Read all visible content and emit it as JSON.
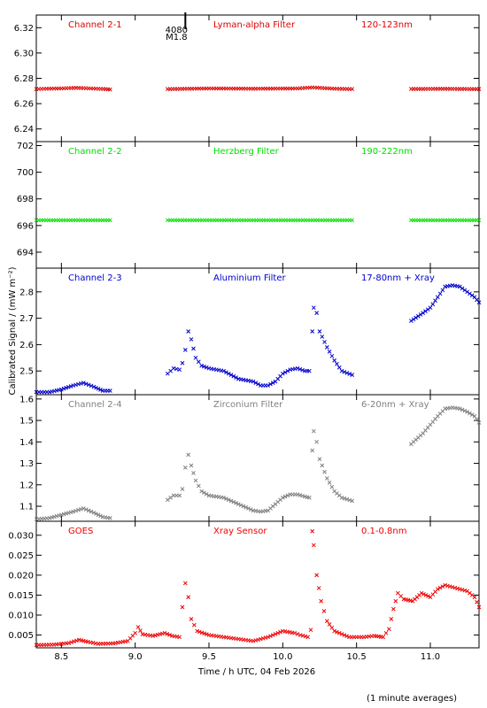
{
  "y_axis_label": "Calibrated Signal / (mW m⁻²)",
  "x_axis_label": "Time / h UTC, 04 Feb 2026",
  "footnote": "(1 minute averages)",
  "marker": {
    "label_line1": "4080",
    "label_line2": "M1.8",
    "time": 9.34
  },
  "x_axis": {
    "min": 8.33,
    "max": 11.33,
    "ticks": [
      8.5,
      9.0,
      9.5,
      10.0,
      10.5,
      11.0
    ],
    "tick_labels": [
      "8.5",
      "9.0",
      "9.5",
      "10.0",
      "10.5",
      "11.0"
    ]
  },
  "chart_data": [
    {
      "type": "scatter",
      "color": "#dd0000",
      "header": [
        "Channel 2-1",
        "Lyman-alpha Filter",
        "120-123nm"
      ],
      "ylim": [
        6.23,
        6.33
      ],
      "yticks": [
        6.24,
        6.26,
        6.28,
        6.3,
        6.32
      ],
      "ytick_labels": [
        "6.24",
        "6.26",
        "6.28",
        "6.30",
        "6.32"
      ],
      "points": [
        [
          8.33,
          6.2715
        ],
        [
          8.4,
          6.2718
        ],
        [
          8.5,
          6.272
        ],
        [
          8.6,
          6.2725
        ],
        [
          8.7,
          6.272
        ],
        [
          8.8,
          6.2715
        ],
        [
          8.83,
          6.2712
        ],
        [
          null,
          null
        ],
        [
          9.22,
          6.2715
        ],
        [
          9.5,
          6.272
        ],
        [
          9.8,
          6.2718
        ],
        [
          10.1,
          6.272
        ],
        [
          10.2,
          6.2728
        ],
        [
          10.35,
          6.2718
        ],
        [
          10.47,
          6.2715
        ],
        [
          null,
          null
        ],
        [
          10.87,
          6.2716
        ],
        [
          11.1,
          6.2717
        ],
        [
          11.33,
          6.2715
        ]
      ]
    },
    {
      "type": "scatter",
      "color": "#00dd00",
      "header": [
        "Channel 2-2",
        "Herzberg Filter",
        "190-222nm"
      ],
      "ylim": [
        692.8,
        702.3
      ],
      "yticks": [
        694,
        696,
        698,
        700,
        702
      ],
      "ytick_labels": [
        "694",
        "696",
        "698",
        "700",
        "702"
      ],
      "points": [
        [
          8.33,
          696.4
        ],
        [
          8.83,
          696.4
        ],
        [
          null,
          null
        ],
        [
          9.22,
          696.4
        ],
        [
          10.47,
          696.4
        ],
        [
          null,
          null
        ],
        [
          10.87,
          696.4
        ],
        [
          11.33,
          696.4
        ]
      ]
    },
    {
      "type": "scatter",
      "color": "#0000cc",
      "header": [
        "Channel 2-3",
        "Aluminium Filter",
        "17-80nm + Xray"
      ],
      "ylim": [
        2.41,
        2.89
      ],
      "yticks": [
        2.5,
        2.6,
        2.7,
        2.8
      ],
      "ytick_labels": [
        "2.5",
        "2.6",
        "2.7",
        "2.8"
      ],
      "points": [
        [
          8.33,
          2.42
        ],
        [
          8.42,
          2.42
        ],
        [
          8.5,
          2.43
        ],
        [
          8.58,
          2.445
        ],
        [
          8.65,
          2.455
        ],
        [
          8.72,
          2.44
        ],
        [
          8.78,
          2.425
        ],
        [
          8.83,
          2.425
        ],
        [
          null,
          null
        ],
        [
          9.22,
          2.49
        ],
        [
          9.26,
          2.51
        ],
        [
          9.3,
          2.505
        ],
        [
          9.32,
          2.53
        ],
        [
          9.34,
          2.58
        ],
        [
          9.36,
          2.65
        ],
        [
          9.38,
          2.62
        ],
        [
          9.41,
          2.55
        ],
        [
          9.45,
          2.52
        ],
        [
          9.5,
          2.51
        ],
        [
          9.6,
          2.5
        ],
        [
          9.7,
          2.47
        ],
        [
          9.8,
          2.46
        ],
        [
          9.85,
          2.445
        ],
        [
          9.9,
          2.445
        ],
        [
          9.95,
          2.46
        ],
        [
          10.0,
          2.49
        ],
        [
          10.05,
          2.505
        ],
        [
          10.1,
          2.51
        ],
        [
          10.15,
          2.5
        ],
        [
          10.18,
          2.5
        ],
        [
          10.2,
          2.65
        ],
        [
          10.21,
          2.74
        ],
        [
          10.23,
          2.72
        ],
        [
          10.25,
          2.65
        ],
        [
          10.3,
          2.59
        ],
        [
          10.35,
          2.54
        ],
        [
          10.4,
          2.5
        ],
        [
          10.47,
          2.485
        ],
        [
          null,
          null
        ],
        [
          10.87,
          2.69
        ],
        [
          10.95,
          2.72
        ],
        [
          11.0,
          2.74
        ],
        [
          11.05,
          2.78
        ],
        [
          11.1,
          2.82
        ],
        [
          11.15,
          2.825
        ],
        [
          11.2,
          2.82
        ],
        [
          11.25,
          2.8
        ],
        [
          11.3,
          2.78
        ],
        [
          11.33,
          2.76
        ]
      ]
    },
    {
      "type": "scatter",
      "color": "#808080",
      "header": [
        "Channel 2-4",
        "Zirconium Filter",
        "6-20nm + Xray"
      ],
      "ylim": [
        1.03,
        1.62
      ],
      "yticks": [
        1.1,
        1.2,
        1.3,
        1.4,
        1.5,
        1.6
      ],
      "ytick_labels": [
        "1.1",
        "1.2",
        "1.3",
        "1.4",
        "1.5",
        "1.6"
      ],
      "points": [
        [
          8.33,
          1.04
        ],
        [
          8.42,
          1.045
        ],
        [
          8.5,
          1.06
        ],
        [
          8.58,
          1.075
        ],
        [
          8.65,
          1.09
        ],
        [
          8.72,
          1.07
        ],
        [
          8.78,
          1.05
        ],
        [
          8.83,
          1.045
        ],
        [
          null,
          null
        ],
        [
          9.22,
          1.13
        ],
        [
          9.26,
          1.15
        ],
        [
          9.3,
          1.15
        ],
        [
          9.32,
          1.18
        ],
        [
          9.34,
          1.28
        ],
        [
          9.36,
          1.34
        ],
        [
          9.38,
          1.29
        ],
        [
          9.41,
          1.22
        ],
        [
          9.45,
          1.17
        ],
        [
          9.5,
          1.15
        ],
        [
          9.6,
          1.14
        ],
        [
          9.7,
          1.11
        ],
        [
          9.8,
          1.08
        ],
        [
          9.85,
          1.075
        ],
        [
          9.9,
          1.08
        ],
        [
          9.95,
          1.11
        ],
        [
          10.0,
          1.14
        ],
        [
          10.05,
          1.155
        ],
        [
          10.1,
          1.155
        ],
        [
          10.15,
          1.145
        ],
        [
          10.18,
          1.14
        ],
        [
          10.2,
          1.36
        ],
        [
          10.21,
          1.45
        ],
        [
          10.23,
          1.4
        ],
        [
          10.25,
          1.32
        ],
        [
          10.3,
          1.23
        ],
        [
          10.35,
          1.17
        ],
        [
          10.4,
          1.14
        ],
        [
          10.47,
          1.125
        ],
        [
          null,
          null
        ],
        [
          10.87,
          1.39
        ],
        [
          10.95,
          1.44
        ],
        [
          11.0,
          1.48
        ],
        [
          11.05,
          1.52
        ],
        [
          11.1,
          1.555
        ],
        [
          11.15,
          1.56
        ],
        [
          11.2,
          1.555
        ],
        [
          11.25,
          1.54
        ],
        [
          11.3,
          1.52
        ],
        [
          11.33,
          1.49
        ]
      ]
    },
    {
      "type": "scatter",
      "color": "#ee0000",
      "header": [
        "GOES",
        "Xray Sensor",
        "0.1-0.8nm"
      ],
      "ylim": [
        0.0018,
        0.0335
      ],
      "yticks": [
        0.005,
        0.01,
        0.015,
        0.02,
        0.025,
        0.03
      ],
      "ytick_labels": [
        "0.005",
        "0.010",
        "0.015",
        "0.020",
        "0.025",
        "0.030"
      ],
      "points": [
        [
          8.33,
          0.0025
        ],
        [
          8.45,
          0.0026
        ],
        [
          8.55,
          0.003
        ],
        [
          8.62,
          0.0038
        ],
        [
          8.68,
          0.0033
        ],
        [
          8.75,
          0.0028
        ],
        [
          8.85,
          0.0029
        ],
        [
          8.95,
          0.0035
        ],
        [
          9.0,
          0.0055
        ],
        [
          9.02,
          0.007
        ],
        [
          9.05,
          0.0052
        ],
        [
          9.12,
          0.0048
        ],
        [
          9.2,
          0.0055
        ],
        [
          9.25,
          0.0048
        ],
        [
          9.3,
          0.0045
        ],
        [
          9.32,
          0.012
        ],
        [
          9.34,
          0.018
        ],
        [
          9.36,
          0.0145
        ],
        [
          9.38,
          0.009
        ],
        [
          9.42,
          0.006
        ],
        [
          9.5,
          0.005
        ],
        [
          9.6,
          0.0045
        ],
        [
          9.7,
          0.004
        ],
        [
          9.8,
          0.0035
        ],
        [
          9.9,
          0.0045
        ],
        [
          10.0,
          0.006
        ],
        [
          10.08,
          0.0055
        ],
        [
          10.12,
          0.005
        ],
        [
          10.17,
          0.0045
        ],
        [
          10.19,
          0.0063
        ],
        [
          10.2,
          0.031
        ],
        [
          10.21,
          0.0275
        ],
        [
          10.23,
          0.02
        ],
        [
          10.26,
          0.0135
        ],
        [
          10.3,
          0.0085
        ],
        [
          10.35,
          0.006
        ],
        [
          10.45,
          0.0045
        ],
        [
          10.55,
          0.0045
        ],
        [
          10.62,
          0.0048
        ],
        [
          10.68,
          0.0045
        ],
        [
          10.72,
          0.0065
        ],
        [
          10.75,
          0.0115
        ],
        [
          10.78,
          0.0155
        ],
        [
          10.82,
          0.014
        ],
        [
          10.88,
          0.0135
        ],
        [
          10.94,
          0.0155
        ],
        [
          11.0,
          0.0145
        ],
        [
          11.05,
          0.0165
        ],
        [
          11.1,
          0.0175
        ],
        [
          11.15,
          0.017
        ],
        [
          11.2,
          0.0165
        ],
        [
          11.25,
          0.016
        ],
        [
          11.3,
          0.0145
        ],
        [
          11.33,
          0.012
        ]
      ]
    }
  ]
}
